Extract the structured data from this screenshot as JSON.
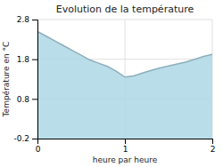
{
  "chart_data": {
    "type": "area",
    "title": "Evolution de la température",
    "xlabel": "heure par heure",
    "ylabel": "Température en °C",
    "color": "#add8e6",
    "x": [
      0,
      0.1,
      0.2,
      0.3,
      0.4,
      0.5,
      0.6,
      0.7,
      0.8,
      0.9,
      1.0,
      1.1,
      1.2,
      1.3,
      1.4,
      1.5,
      1.6,
      1.7,
      1.8,
      1.9,
      2.0
    ],
    "values": [
      2.5,
      2.38,
      2.26,
      2.14,
      2.02,
      1.9,
      1.78,
      1.7,
      1.62,
      1.5,
      1.35,
      1.38,
      1.45,
      1.52,
      1.58,
      1.63,
      1.68,
      1.73,
      1.8,
      1.87,
      1.92
    ],
    "xlim": [
      0,
      2
    ],
    "ylim": [
      -0.2,
      2.8
    ],
    "xticks": [
      0,
      1,
      2
    ],
    "yticks": [
      -0.2,
      0.8,
      1.8,
      2.8
    ],
    "grid": true
  }
}
